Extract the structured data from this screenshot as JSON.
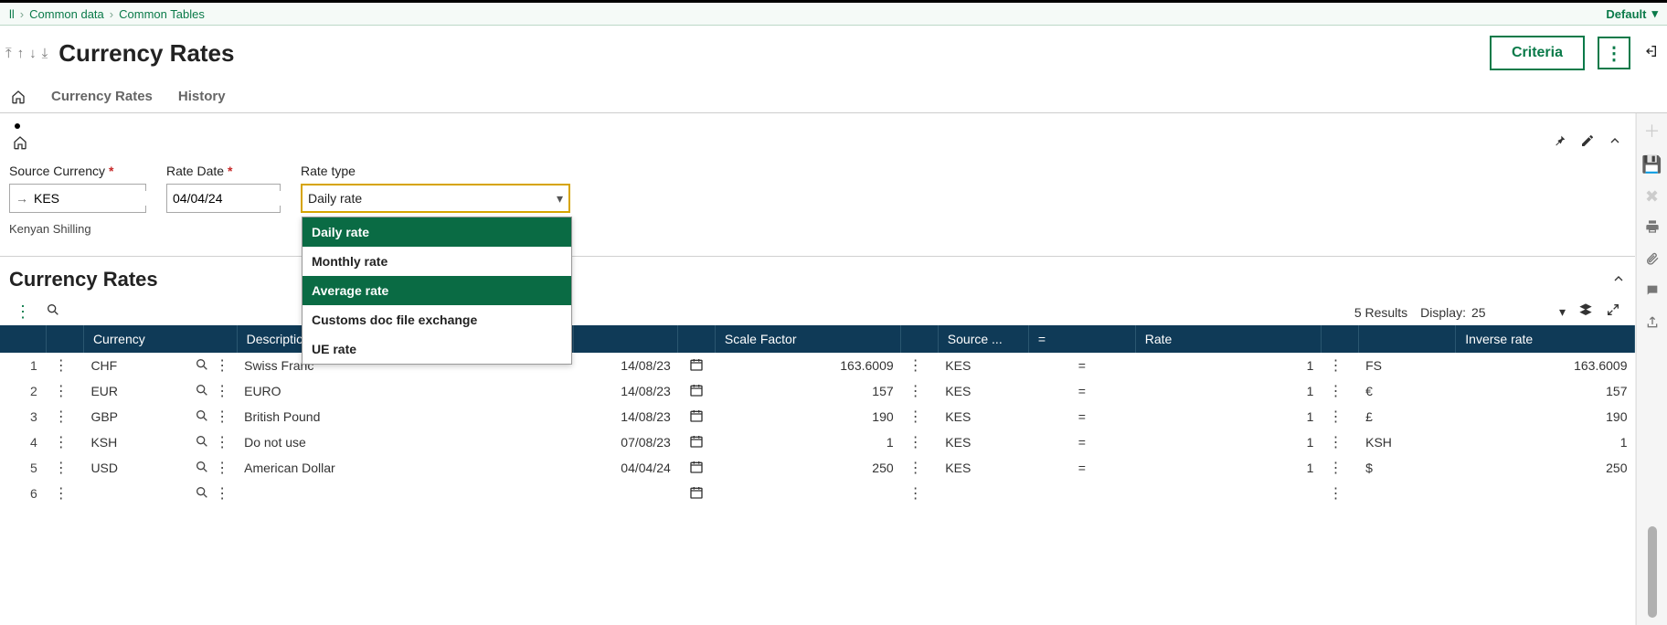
{
  "breadcrumbs": {
    "items": [
      "ll",
      "Common data",
      "Common Tables"
    ]
  },
  "topbar": {
    "default_label": "Default"
  },
  "page": {
    "title": "Currency Rates"
  },
  "actions": {
    "criteria": "Criteria"
  },
  "tabs": {
    "active": "Currency Rates",
    "other": "History"
  },
  "filters": {
    "source_currency": {
      "label": "Source Currency",
      "value": "KES",
      "helper": "Kenyan Shilling"
    },
    "rate_date": {
      "label": "Rate Date",
      "value": "04/04/24"
    },
    "rate_type": {
      "label": "Rate type",
      "value": "Daily rate",
      "options": [
        "Daily rate",
        "Monthly rate",
        "Average rate",
        "Customs doc file exchange",
        "UE rate"
      ],
      "selected_indices": [
        0,
        2
      ]
    }
  },
  "section": {
    "title": "Currency Rates"
  },
  "table_meta": {
    "results_label": "5 Results",
    "display_label": "Display:",
    "display_value": "25"
  },
  "columns": {
    "currency": "Currency",
    "description": "Description",
    "scale": "Scale Factor",
    "source": "Source ...",
    "eq": "=",
    "rate": "Rate",
    "inverse": "Inverse rate"
  },
  "rows": [
    {
      "n": "1",
      "currency": "CHF",
      "description": "Swiss Franc",
      "date": "14/08/23",
      "scale": "163.6009",
      "source": "KES",
      "eq": "=",
      "rate": "1",
      "symbol": "FS",
      "inverse": "163.6009"
    },
    {
      "n": "2",
      "currency": "EUR",
      "description": "EURO",
      "date": "14/08/23",
      "scale": "157",
      "source": "KES",
      "eq": "=",
      "rate": "1",
      "symbol": "€",
      "inverse": "157"
    },
    {
      "n": "3",
      "currency": "GBP",
      "description": "British Pound",
      "date": "14/08/23",
      "scale": "190",
      "source": "KES",
      "eq": "=",
      "rate": "1",
      "symbol": "£",
      "inverse": "190"
    },
    {
      "n": "4",
      "currency": "KSH",
      "description": "Do not use",
      "date": "07/08/23",
      "scale": "1",
      "source": "KES",
      "eq": "=",
      "rate": "1",
      "symbol": "KSH",
      "inverse": "1"
    },
    {
      "n": "5",
      "currency": "USD",
      "description": "American Dollar",
      "date": "04/04/24",
      "scale": "250",
      "source": "KES",
      "eq": "=",
      "rate": "1",
      "symbol": "$",
      "inverse": "250"
    },
    {
      "n": "6",
      "currency": "",
      "description": "",
      "date": "",
      "scale": "",
      "source": "",
      "eq": "",
      "rate": "",
      "symbol": "",
      "inverse": ""
    }
  ],
  "colors": {
    "brand": "#0a7a49",
    "header_bg": "#0f3a57",
    "dropdown_sel": "#0a6b44",
    "focus_border": "#d6a400"
  }
}
